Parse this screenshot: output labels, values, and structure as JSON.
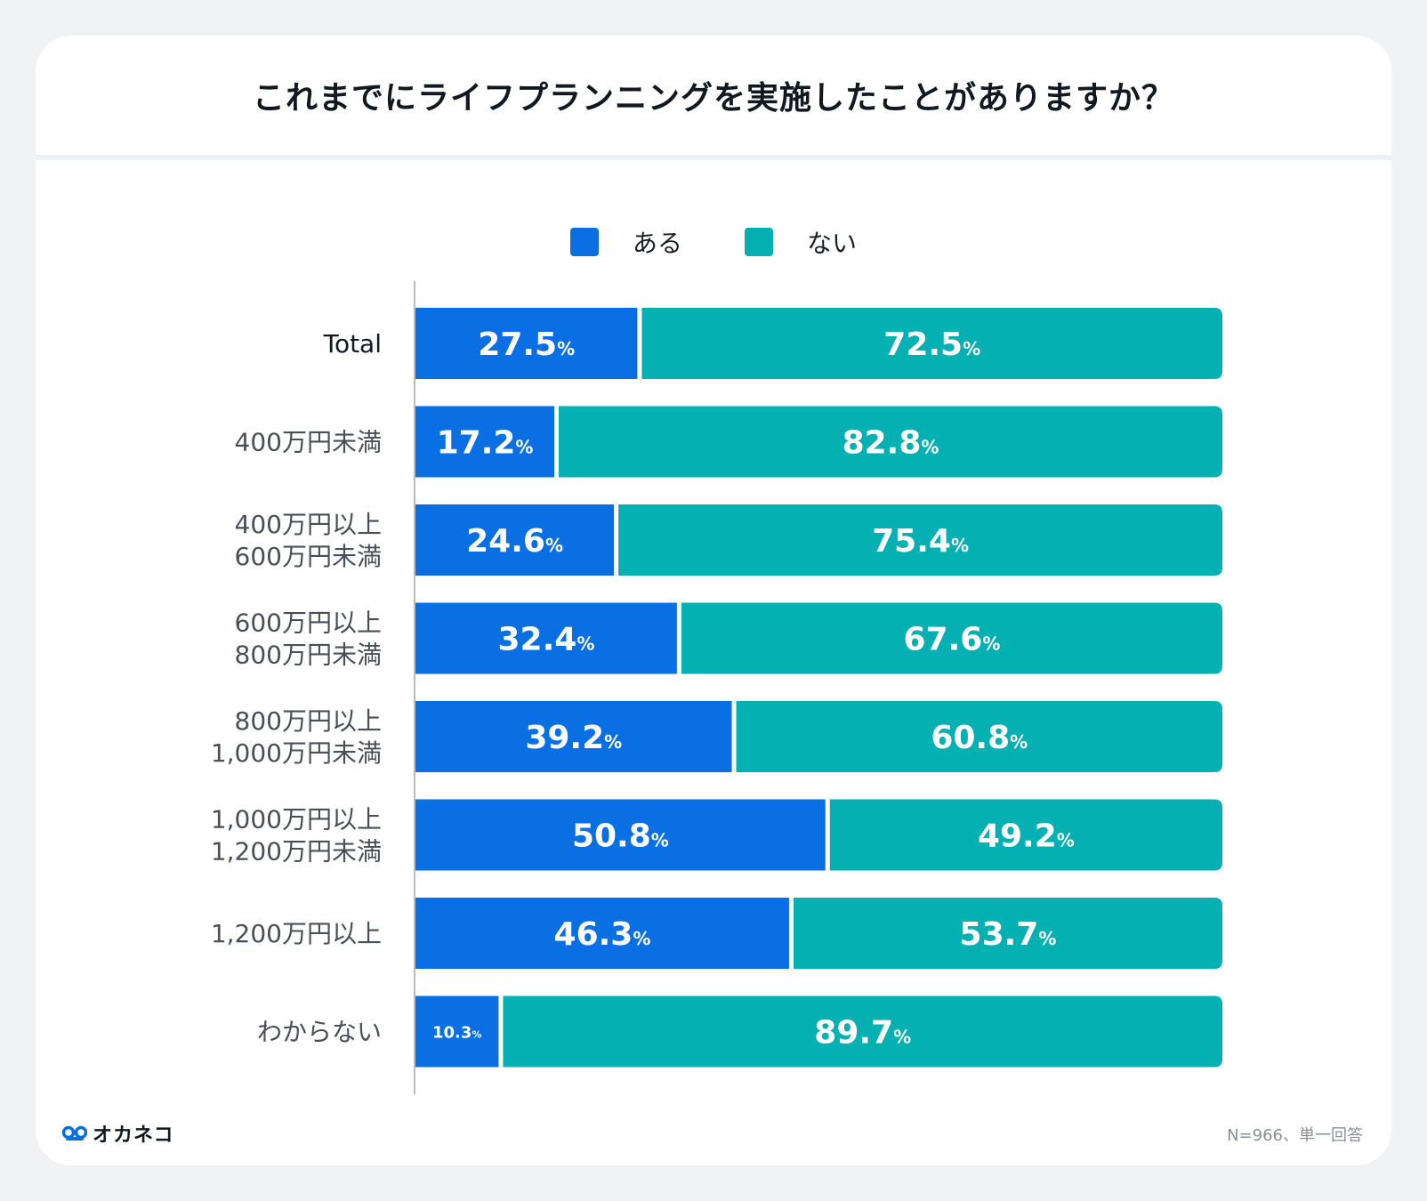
{
  "title": "これまでにライフプランニングを実施したことがありますか？",
  "colors": {
    "aru": "#0a6fe3",
    "nai": "#05b0b3",
    "axis": "#b7bcc2",
    "label": "#4a4f57",
    "total_label": "#111820",
    "value_text": "#ffffff"
  },
  "legend": [
    {
      "name": "ある",
      "color": "#0a6fe3"
    },
    {
      "name": "ない",
      "color": "#05b0b3"
    }
  ],
  "footer": {
    "brand": "オカネコ",
    "note": "N=966、単一回答"
  },
  "chart_data": {
    "type": "bar",
    "orientation": "horizontal",
    "stacked": true,
    "normalized": true,
    "title": "これまでにライフプランニングを実施したことがありますか？",
    "xlabel": "",
    "ylabel": "",
    "xlim": [
      0,
      100
    ],
    "grid": false,
    "legend_position": "top-center",
    "value_suffix": "%",
    "categories": [
      [
        "Total"
      ],
      [
        "400万円未満"
      ],
      [
        "400万円以上",
        "600万円未満"
      ],
      [
        "600万円以上",
        "800万円未満"
      ],
      [
        "800万円以上",
        "1,000万円未満"
      ],
      [
        "1,000万円以上",
        "1,200万円未満"
      ],
      [
        "1,200万円以上"
      ],
      [
        "わからない"
      ]
    ],
    "series": [
      {
        "name": "ある",
        "values": [
          27.5,
          17.2,
          24.6,
          32.4,
          39.2,
          50.8,
          46.3,
          10.3
        ]
      },
      {
        "name": "ない",
        "values": [
          72.5,
          82.8,
          75.4,
          67.6,
          60.8,
          49.2,
          53.7,
          89.7
        ]
      }
    ],
    "note": "N=966、単一回答"
  }
}
